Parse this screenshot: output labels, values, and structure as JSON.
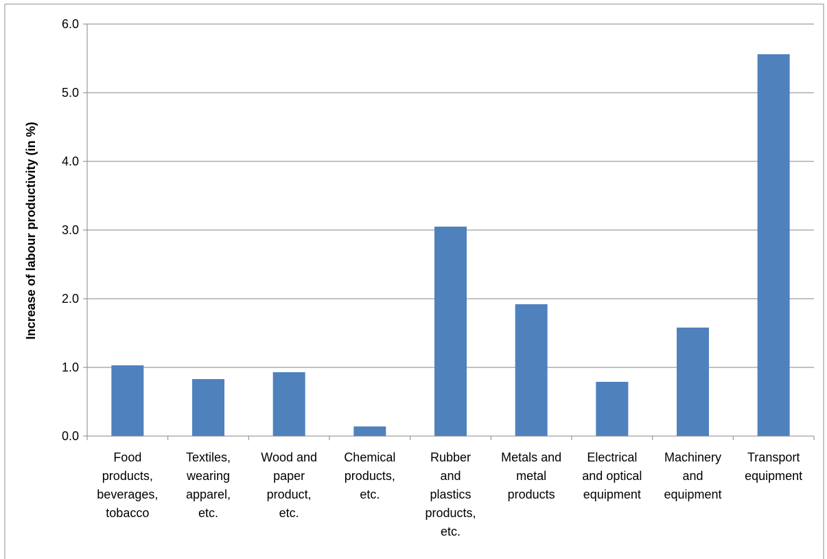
{
  "chart_data": {
    "type": "bar",
    "title": "",
    "xlabel": "",
    "ylabel": "Increase of labour productivity (in %)",
    "ylim": [
      0,
      6
    ],
    "yticks": [
      "0.0",
      "1.0",
      "2.0",
      "3.0",
      "4.0",
      "5.0",
      "6.0"
    ],
    "grid": true,
    "legend": "none",
    "bar_color": "#4F81BD",
    "categories": [
      "Food products, beverages, tobacco",
      "Textiles, wearing apparel, etc.",
      "Wood and paper product, etc.",
      "Chemical products, etc.",
      "Rubber and plastics products, etc.",
      "Metals and metal products",
      "Electrical and optical equipment",
      "Machinery and equipment",
      "Transport equipment"
    ],
    "category_lines": [
      [
        "Food",
        "products,",
        "beverages,",
        "tobacco"
      ],
      [
        "Textiles,",
        "wearing",
        "apparel,",
        "etc."
      ],
      [
        "Wood and",
        "paper",
        "product,",
        "etc."
      ],
      [
        "Chemical",
        "products,",
        "etc."
      ],
      [
        "Rubber",
        "and",
        "plastics",
        "products,",
        "etc."
      ],
      [
        "Metals and",
        "metal",
        "products"
      ],
      [
        "Electrical",
        "and optical",
        "equipment"
      ],
      [
        "Machinery",
        "and",
        "equipment"
      ],
      [
        "Transport",
        "equipment"
      ]
    ],
    "values": [
      1.03,
      0.83,
      0.93,
      0.14,
      3.05,
      1.92,
      0.79,
      1.58,
      5.56
    ]
  }
}
